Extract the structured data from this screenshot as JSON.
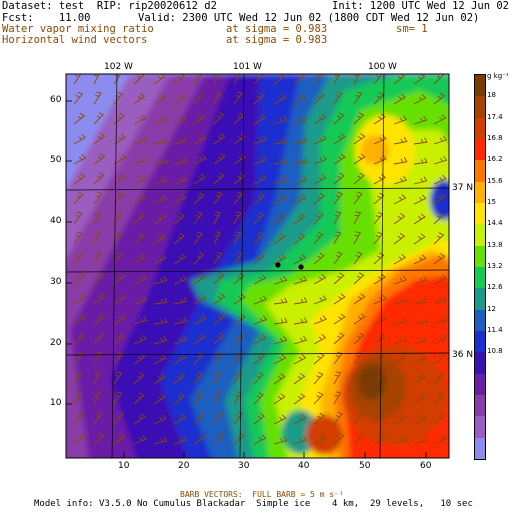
{
  "header": {
    "dataset_line": "Dataset: test  RIP: rip20020612 d2",
    "init_line": "Init: 1200 UTC Wed 12 Jun 02",
    "fcst_line": "Fcst:    11.00",
    "valid_line": "Valid: 2300 UTC Wed 12 Jun 02 (1800 CDT Wed 12 Jun 02)",
    "field1_name": "Water vapor mixing ratio",
    "field1_level": "at sigma = 0.983",
    "field1_sm": "sm= 1",
    "field2_name": "Horizontal wind vectors",
    "field2_level": "at sigma = 0.983"
  },
  "map": {
    "lon_labels": [
      "102 W",
      "101 W",
      "100 W"
    ],
    "lat_labels": [
      "37 N",
      "36 N"
    ],
    "x_ticks": [
      "10",
      "20",
      "30",
      "40",
      "50",
      "60"
    ],
    "y_ticks": [
      "10",
      "20",
      "30",
      "40",
      "50",
      "60"
    ],
    "points": [
      {
        "x": 35,
        "y": 33
      },
      {
        "x": 39,
        "y": 33
      }
    ]
  },
  "colorbar": {
    "unit": "g kg⁻¹",
    "labels": [
      "18",
      "17.4",
      "16.8",
      "16.2",
      "15.6",
      "15",
      "14.4",
      "13.8",
      "13.2",
      "12.6",
      "12",
      "11.4",
      "10.8"
    ],
    "colors": [
      "#7a3b00",
      "#a84200",
      "#d23d00",
      "#ff2a00",
      "#ff7700",
      "#ffb000",
      "#ffe400",
      "#c9f000",
      "#66e000",
      "#17c957",
      "#1b9a8a",
      "#1d5fc0",
      "#1e2fcf",
      "#3b10b5",
      "#6a1fa6",
      "#8a3ca8",
      "#9a5dc0",
      "#8c8cf0"
    ]
  },
  "footer": {
    "barb_note": "BARB VECTORS:  FULL BARB = 5 m s⁻¹",
    "model_info": "Model info: V3.5.0 No Cumulus Blackadar  Simple ice    4 km,  29 levels,   10 sec"
  }
}
